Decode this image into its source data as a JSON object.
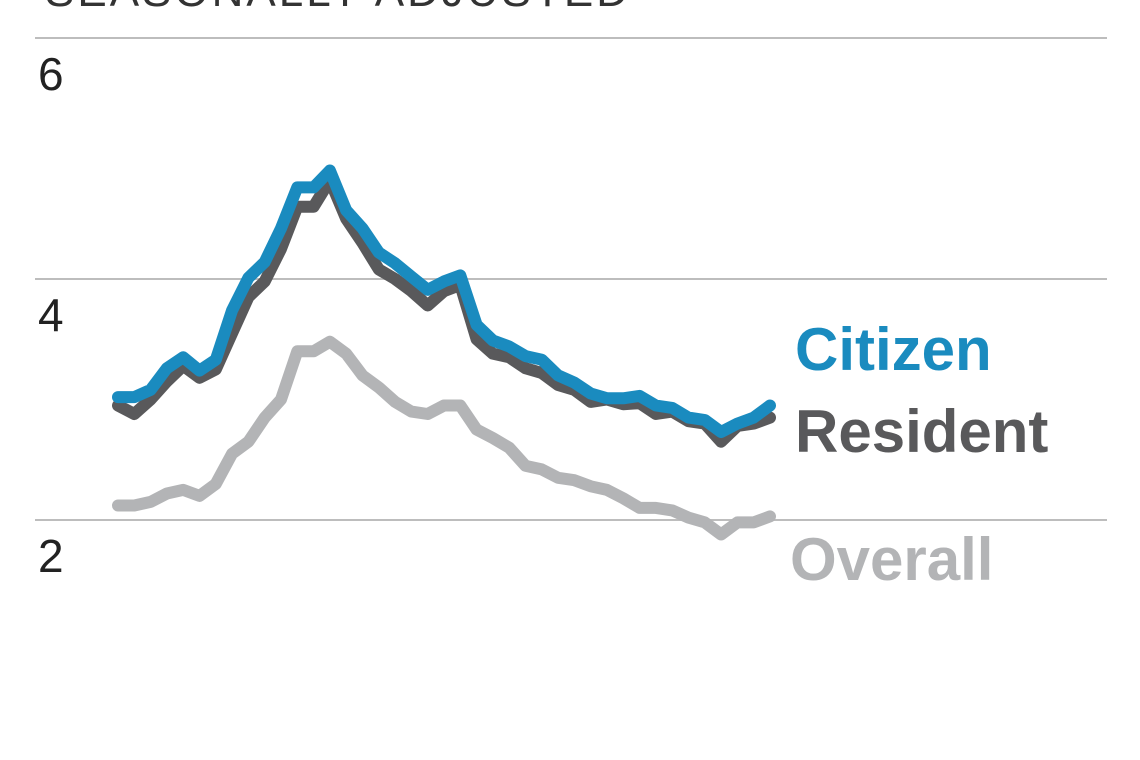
{
  "chart_data": {
    "type": "line",
    "subtitle": "SEASONALLY ADJUSTED",
    "categories": [
      null,
      null,
      null,
      null,
      null,
      null,
      null,
      null,
      null,
      null,
      null,
      null,
      null,
      null,
      null,
      null,
      null,
      null,
      null,
      null,
      null,
      null,
      null,
      null,
      null,
      null,
      null,
      null,
      null,
      null,
      null,
      null,
      null,
      null,
      null,
      null,
      null,
      null,
      null,
      null,
      null
    ],
    "ylim": [
      2,
      6
    ],
    "yticks": [
      2,
      4,
      6
    ],
    "grid": true,
    "series": [
      {
        "name": "Citizen",
        "color": "#1a8bbf",
        "values": [
          3.02,
          3.02,
          3.08,
          3.26,
          3.35,
          3.24,
          3.33,
          3.74,
          4.01,
          4.14,
          4.42,
          4.76,
          4.76,
          4.9,
          4.57,
          4.42,
          4.22,
          4.13,
          4.02,
          3.91,
          3.98,
          4.03,
          3.62,
          3.49,
          3.44,
          3.36,
          3.33,
          3.2,
          3.14,
          3.05,
          3.01,
          3.01,
          3.03,
          2.95,
          2.93,
          2.85,
          2.83,
          2.73,
          2.8,
          2.85,
          2.95
        ]
      },
      {
        "name": "Resident",
        "color": "#59595b",
        "values": [
          2.95,
          2.88,
          3.0,
          3.15,
          3.28,
          3.18,
          3.25,
          3.55,
          3.85,
          3.98,
          4.25,
          4.6,
          4.6,
          4.82,
          4.5,
          4.3,
          4.08,
          4.0,
          3.9,
          3.78,
          3.9,
          3.95,
          3.5,
          3.38,
          3.35,
          3.26,
          3.22,
          3.12,
          3.08,
          2.98,
          3.0,
          2.96,
          2.97,
          2.88,
          2.9,
          2.82,
          2.8,
          2.65,
          2.78,
          2.8,
          2.85
        ]
      },
      {
        "name": "Overall",
        "color": "#b3b4b6",
        "values": [
          2.12,
          2.12,
          2.15,
          2.22,
          2.25,
          2.2,
          2.3,
          2.55,
          2.65,
          2.85,
          3.0,
          3.4,
          3.4,
          3.48,
          3.38,
          3.2,
          3.1,
          2.98,
          2.9,
          2.88,
          2.95,
          2.95,
          2.75,
          2.68,
          2.6,
          2.45,
          2.42,
          2.35,
          2.33,
          2.28,
          2.25,
          2.18,
          2.1,
          2.1,
          2.08,
          2.02,
          1.98,
          1.88,
          1.98,
          1.98,
          2.03
        ]
      }
    ]
  }
}
